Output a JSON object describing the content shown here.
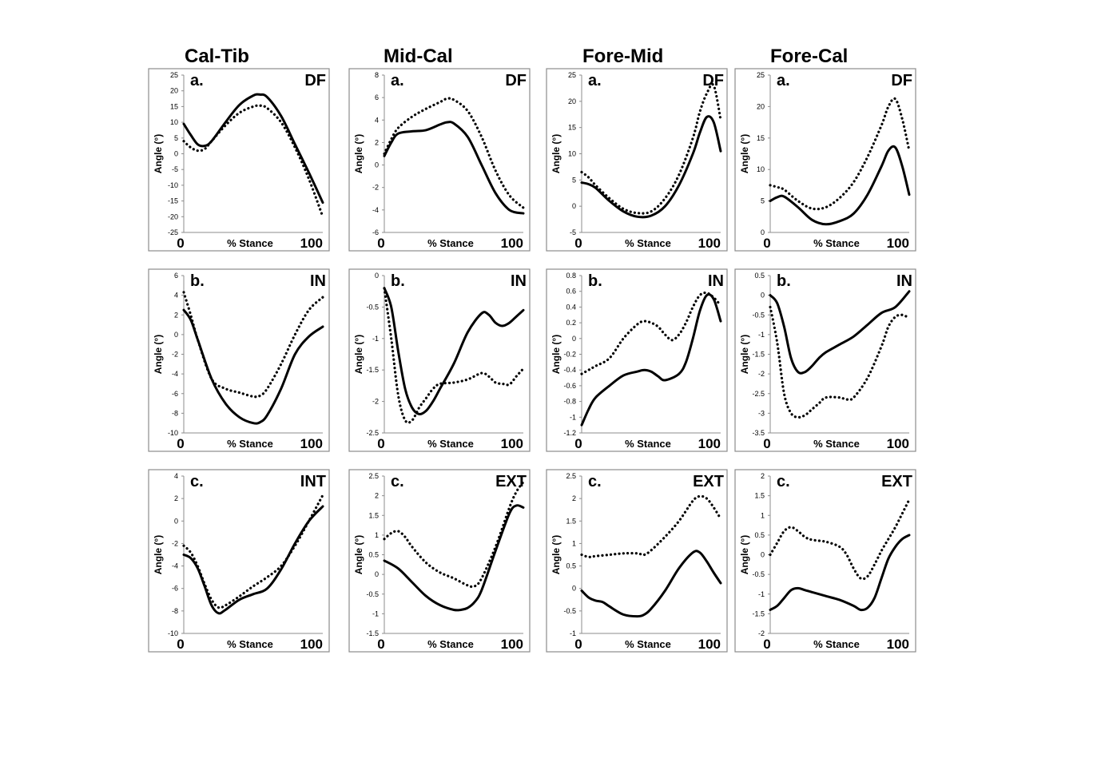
{
  "column_titles": [
    "Cal-Tib",
    "Mid-Cal",
    "Fore-Mid",
    "Fore-Cal"
  ],
  "y_axis_label": "Angle (°)",
  "x_axis_label": "% Stance",
  "x_start_label": "0",
  "x_end_label": "100",
  "series_styles": {
    "solid": "#000000",
    "dotted": "#000000"
  },
  "chart_data": [
    {
      "id": "cal-tib-a",
      "type": "line",
      "panel_label": "a.",
      "direction_label": "DF",
      "ylim": [
        -25,
        25
      ],
      "yticks": [
        -25,
        -20,
        -15,
        -10,
        -5,
        0,
        5,
        10,
        15,
        20,
        25
      ],
      "xlim": [
        0,
        100
      ],
      "series": [
        {
          "style": "solid",
          "x": [
            0,
            5,
            10,
            15,
            20,
            30,
            40,
            50,
            55,
            60,
            70,
            80,
            90,
            100
          ],
          "values": [
            9.5,
            6,
            3,
            2.5,
            4,
            10,
            15.5,
            18.5,
            18.8,
            18,
            12,
            3,
            -6,
            -15.5
          ]
        },
        {
          "style": "dotted",
          "x": [
            0,
            5,
            10,
            15,
            20,
            30,
            40,
            50,
            55,
            60,
            70,
            80,
            90,
            100
          ],
          "values": [
            4,
            2,
            1,
            1.5,
            4,
            9,
            13,
            15,
            15.3,
            14.5,
            10,
            2,
            -8,
            -20
          ]
        }
      ]
    },
    {
      "id": "mid-cal-a",
      "type": "line",
      "panel_label": "a.",
      "direction_label": "DF",
      "ylim": [
        -6,
        8
      ],
      "yticks": [
        -6,
        -4,
        -2,
        0,
        2,
        4,
        6,
        8
      ],
      "xlim": [
        0,
        100
      ],
      "series": [
        {
          "style": "solid",
          "x": [
            0,
            5,
            10,
            20,
            30,
            40,
            45,
            50,
            60,
            70,
            80,
            90,
            100
          ],
          "values": [
            0.8,
            2,
            2.8,
            3,
            3.1,
            3.6,
            3.8,
            3.7,
            2.5,
            0,
            -2.5,
            -4,
            -4.3
          ]
        },
        {
          "style": "dotted",
          "x": [
            0,
            5,
            10,
            20,
            30,
            40,
            45,
            50,
            60,
            70,
            80,
            90,
            100
          ],
          "values": [
            1,
            2.3,
            3.3,
            4.3,
            5,
            5.6,
            5.9,
            5.8,
            4.8,
            2.5,
            -0.5,
            -2.7,
            -3.8
          ]
        }
      ]
    },
    {
      "id": "fore-mid-a",
      "type": "line",
      "panel_label": "a.",
      "direction_label": "DF",
      "ylim": [
        -5,
        25
      ],
      "yticks": [
        -5,
        0,
        5,
        10,
        15,
        20,
        25
      ],
      "xlim": [
        0,
        100
      ],
      "series": [
        {
          "style": "solid",
          "x": [
            0,
            5,
            10,
            20,
            30,
            40,
            50,
            60,
            70,
            80,
            85,
            90,
            95,
            100
          ],
          "values": [
            4.5,
            4.2,
            3.5,
            1,
            -1,
            -2,
            -1.8,
            0,
            4,
            10,
            14,
            17,
            16,
            10.5
          ]
        },
        {
          "style": "dotted",
          "x": [
            0,
            5,
            10,
            20,
            30,
            40,
            50,
            60,
            70,
            80,
            85,
            90,
            95,
            100
          ],
          "values": [
            6.5,
            5.5,
            4,
            1.5,
            -0.5,
            -1.3,
            -1,
            1.5,
            6,
            13,
            18,
            21.5,
            23,
            16.5
          ]
        }
      ]
    },
    {
      "id": "fore-cal-a",
      "type": "line",
      "panel_label": "a.",
      "direction_label": "DF",
      "ylim": [
        0,
        25
      ],
      "yticks": [
        0,
        5,
        10,
        15,
        20,
        25
      ],
      "xlim": [
        0,
        100
      ],
      "series": [
        {
          "style": "solid",
          "x": [
            0,
            5,
            10,
            20,
            30,
            40,
            50,
            60,
            70,
            80,
            85,
            90,
            95,
            100
          ],
          "values": [
            5,
            5.6,
            5.7,
            4,
            2,
            1.3,
            1.8,
            3,
            6,
            10.5,
            13,
            13.5,
            10.5,
            6
          ]
        },
        {
          "style": "dotted",
          "x": [
            0,
            5,
            10,
            20,
            30,
            40,
            50,
            60,
            70,
            80,
            85,
            90,
            95,
            100
          ],
          "values": [
            7.5,
            7.2,
            6.8,
            5,
            3.8,
            4,
            5.5,
            8,
            12,
            17,
            20,
            21.2,
            18,
            13
          ]
        }
      ]
    },
    {
      "id": "cal-tib-b",
      "type": "line",
      "panel_label": "b.",
      "direction_label": "IN",
      "ylim": [
        -10,
        6
      ],
      "yticks": [
        -10,
        -8,
        -6,
        -4,
        -2,
        0,
        2,
        4,
        6
      ],
      "xlim": [
        0,
        100
      ],
      "series": [
        {
          "style": "solid",
          "x": [
            0,
            5,
            10,
            20,
            30,
            40,
            50,
            55,
            60,
            70,
            80,
            90,
            100
          ],
          "values": [
            2.5,
            1.5,
            -0.5,
            -4.5,
            -7,
            -8.4,
            -9,
            -8.9,
            -8.2,
            -5.5,
            -2,
            -0.2,
            0.8
          ]
        },
        {
          "style": "dotted",
          "x": [
            0,
            5,
            10,
            20,
            30,
            40,
            50,
            55,
            60,
            70,
            80,
            90,
            100
          ],
          "values": [
            4.3,
            2,
            -0.5,
            -4.5,
            -5.5,
            -5.9,
            -6.3,
            -6.2,
            -5.5,
            -3,
            0,
            2.5,
            3.8
          ]
        }
      ]
    },
    {
      "id": "mid-cal-b",
      "type": "line",
      "panel_label": "b.",
      "direction_label": "IN",
      "ylim": [
        -2.5,
        0
      ],
      "yticks": [
        -2.5,
        -2,
        -1.5,
        -1,
        -0.5,
        0
      ],
      "xlim": [
        0,
        100
      ],
      "series": [
        {
          "style": "solid",
          "x": [
            0,
            5,
            10,
            15,
            20,
            25,
            30,
            35,
            40,
            50,
            60,
            70,
            75,
            80,
            85,
            90,
            95,
            100
          ],
          "values": [
            -0.2,
            -0.5,
            -1.2,
            -1.8,
            -2.1,
            -2.2,
            -2.15,
            -2,
            -1.8,
            -1.4,
            -0.9,
            -0.6,
            -0.62,
            -0.75,
            -0.8,
            -0.75,
            -0.65,
            -0.55
          ]
        },
        {
          "style": "dotted",
          "x": [
            0,
            5,
            10,
            15,
            20,
            25,
            30,
            35,
            40,
            50,
            60,
            70,
            75,
            80,
            85,
            90,
            95,
            100
          ],
          "values": [
            -0.2,
            -1,
            -1.9,
            -2.3,
            -2.3,
            -2.1,
            -1.95,
            -1.8,
            -1.72,
            -1.7,
            -1.65,
            -1.55,
            -1.6,
            -1.7,
            -1.72,
            -1.73,
            -1.6,
            -1.48
          ]
        }
      ]
    },
    {
      "id": "fore-mid-b",
      "type": "line",
      "panel_label": "b.",
      "direction_label": "IN",
      "ylim": [
        -1.2,
        0.8
      ],
      "yticks": [
        -1.2,
        -1,
        -0.8,
        -0.6,
        -0.4,
        -0.2,
        0,
        0.2,
        0.4,
        0.6,
        0.8
      ],
      "xlim": [
        0,
        100
      ],
      "series": [
        {
          "style": "solid",
          "x": [
            0,
            5,
            10,
            20,
            30,
            40,
            45,
            50,
            55,
            60,
            70,
            75,
            80,
            85,
            90,
            95,
            100
          ],
          "values": [
            -1.1,
            -0.9,
            -0.75,
            -0.6,
            -0.47,
            -0.42,
            -0.4,
            -0.42,
            -0.48,
            -0.53,
            -0.45,
            -0.3,
            0,
            0.35,
            0.55,
            0.5,
            0.22
          ]
        },
        {
          "style": "dotted",
          "x": [
            0,
            5,
            10,
            20,
            30,
            40,
            45,
            50,
            55,
            60,
            65,
            70,
            75,
            80,
            85,
            90,
            95,
            100
          ],
          "values": [
            -0.45,
            -0.4,
            -0.35,
            -0.25,
            0,
            0.18,
            0.22,
            0.2,
            0.15,
            0.05,
            -0.02,
            0.05,
            0.2,
            0.4,
            0.55,
            0.58,
            0.52,
            0.42
          ]
        }
      ]
    },
    {
      "id": "fore-cal-b",
      "type": "line",
      "panel_label": "b.",
      "direction_label": "IN",
      "ylim": [
        -3.5,
        0.5
      ],
      "yticks": [
        -3.5,
        -3,
        -2.5,
        -2,
        -1.5,
        -1,
        -0.5,
        0,
        0.5
      ],
      "xlim": [
        0,
        100
      ],
      "series": [
        {
          "style": "solid",
          "x": [
            0,
            5,
            10,
            15,
            20,
            25,
            30,
            35,
            40,
            50,
            60,
            70,
            80,
            90,
            100
          ],
          "values": [
            0,
            -0.2,
            -0.8,
            -1.6,
            -1.95,
            -1.95,
            -1.8,
            -1.6,
            -1.45,
            -1.25,
            -1.05,
            -0.75,
            -0.45,
            -0.3,
            0.1
          ]
        },
        {
          "style": "dotted",
          "x": [
            0,
            5,
            10,
            15,
            20,
            25,
            30,
            35,
            40,
            50,
            55,
            60,
            70,
            80,
            85,
            90,
            95,
            100
          ],
          "values": [
            -0.3,
            -1.2,
            -2.5,
            -3,
            -3.1,
            -3.05,
            -2.9,
            -2.75,
            -2.6,
            -2.6,
            -2.65,
            -2.6,
            -2.1,
            -1.3,
            -0.8,
            -0.55,
            -0.5,
            -0.58
          ]
        }
      ]
    },
    {
      "id": "cal-tib-c",
      "type": "line",
      "panel_label": "c.",
      "direction_label": "INT",
      "ylim": [
        -10,
        4
      ],
      "yticks": [
        -10,
        -8,
        -6,
        -4,
        -2,
        0,
        2,
        4
      ],
      "xlim": [
        0,
        100
      ],
      "series": [
        {
          "style": "solid",
          "x": [
            0,
            5,
            10,
            15,
            20,
            25,
            30,
            40,
            50,
            60,
            70,
            80,
            90,
            100
          ],
          "values": [
            -3,
            -3.3,
            -4.2,
            -5.8,
            -7.5,
            -8.2,
            -7.9,
            -7,
            -6.5,
            -6,
            -4.3,
            -2,
            0,
            1.3
          ]
        },
        {
          "style": "dotted",
          "x": [
            0,
            5,
            10,
            15,
            20,
            25,
            30,
            40,
            50,
            60,
            70,
            80,
            90,
            100
          ],
          "values": [
            -2.2,
            -2.8,
            -4,
            -5.6,
            -7,
            -7.7,
            -7.5,
            -6.7,
            -5.8,
            -5,
            -4,
            -2.2,
            0,
            2.3
          ]
        }
      ]
    },
    {
      "id": "mid-cal-c",
      "type": "line",
      "panel_label": "c.",
      "direction_label": "EXT",
      "ylim": [
        -1.5,
        2.5
      ],
      "yticks": [
        -1.5,
        -1,
        -0.5,
        0,
        0.5,
        1,
        1.5,
        2,
        2.5
      ],
      "xlim": [
        0,
        100
      ],
      "series": [
        {
          "style": "solid",
          "x": [
            0,
            10,
            20,
            30,
            40,
            50,
            55,
            60,
            65,
            70,
            80,
            90,
            95,
            100
          ],
          "values": [
            0.35,
            0.15,
            -0.2,
            -0.55,
            -0.78,
            -0.9,
            -0.9,
            -0.85,
            -0.7,
            -0.4,
            0.6,
            1.55,
            1.75,
            1.7
          ]
        },
        {
          "style": "dotted",
          "x": [
            0,
            5,
            10,
            15,
            20,
            30,
            40,
            50,
            60,
            65,
            70,
            80,
            90,
            95,
            100
          ],
          "values": [
            0.9,
            1.05,
            1.1,
            0.95,
            0.7,
            0.3,
            0.05,
            -0.1,
            -0.28,
            -0.3,
            -0.1,
            0.7,
            1.7,
            2.1,
            2.35
          ]
        }
      ]
    },
    {
      "id": "fore-mid-c",
      "type": "line",
      "panel_label": "c.",
      "direction_label": "EXT",
      "ylim": [
        -1,
        2.5
      ],
      "yticks": [
        -1,
        -0.5,
        0,
        0.5,
        1,
        1.5,
        2,
        2.5
      ],
      "xlim": [
        0,
        100
      ],
      "series": [
        {
          "style": "solid",
          "x": [
            0,
            5,
            10,
            15,
            20,
            30,
            40,
            45,
            50,
            60,
            70,
            80,
            85,
            90,
            95,
            100
          ],
          "values": [
            -0.05,
            -0.2,
            -0.27,
            -0.3,
            -0.4,
            -0.58,
            -0.62,
            -0.58,
            -0.45,
            -0.05,
            0.45,
            0.8,
            0.8,
            0.6,
            0.35,
            0.12
          ]
        },
        {
          "style": "dotted",
          "x": [
            0,
            5,
            10,
            20,
            30,
            40,
            45,
            50,
            60,
            70,
            80,
            85,
            90,
            95,
            100
          ],
          "values": [
            0.75,
            0.7,
            0.72,
            0.75,
            0.78,
            0.78,
            0.75,
            0.85,
            1.15,
            1.5,
            1.95,
            2.05,
            2.0,
            1.8,
            1.55
          ]
        }
      ]
    },
    {
      "id": "fore-cal-c",
      "type": "line",
      "panel_label": "c.",
      "direction_label": "EXT",
      "ylim": [
        -2,
        2
      ],
      "yticks": [
        -2,
        -1.5,
        -1,
        -0.5,
        0,
        0.5,
        1,
        1.5,
        2
      ],
      "xlim": [
        0,
        100
      ],
      "series": [
        {
          "style": "solid",
          "x": [
            0,
            5,
            10,
            15,
            20,
            25,
            30,
            40,
            50,
            60,
            65,
            70,
            75,
            80,
            85,
            90,
            95,
            100
          ],
          "values": [
            -1.4,
            -1.3,
            -1.1,
            -0.9,
            -0.85,
            -0.9,
            -0.95,
            -1.05,
            -1.15,
            -1.3,
            -1.4,
            -1.35,
            -1.1,
            -0.6,
            -0.1,
            0.2,
            0.4,
            0.5
          ]
        },
        {
          "style": "dotted",
          "x": [
            0,
            5,
            10,
            15,
            20,
            25,
            30,
            40,
            50,
            55,
            60,
            65,
            70,
            75,
            80,
            85,
            90,
            95,
            100
          ],
          "values": [
            0,
            0.3,
            0.6,
            0.7,
            0.6,
            0.45,
            0.38,
            0.33,
            0.2,
            0,
            -0.35,
            -0.6,
            -0.55,
            -0.25,
            0.1,
            0.4,
            0.7,
            1.05,
            1.4
          ]
        }
      ]
    }
  ]
}
